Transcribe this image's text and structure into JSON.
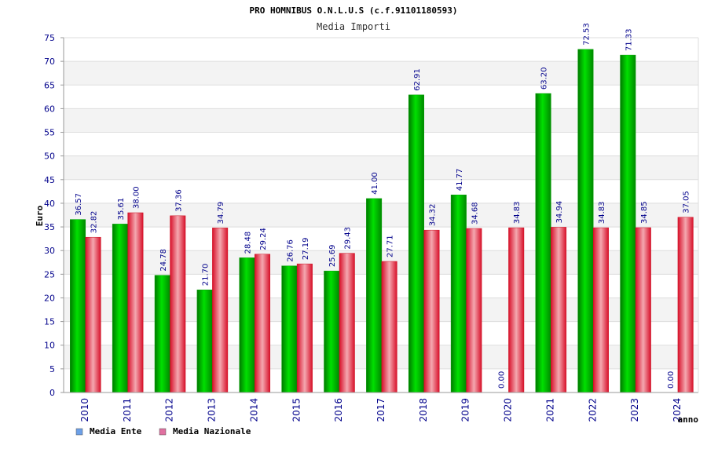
{
  "chart_data": {
    "type": "bar",
    "title": "PRO HOMNIBUS O.N.L.U.S (c.f.91101180593)",
    "subtitle": "Media Importi",
    "xlabel": "anno",
    "ylabel": "Euro",
    "categories": [
      "2010",
      "2011",
      "2012",
      "2013",
      "2014",
      "2015",
      "2016",
      "2017",
      "2018",
      "2019",
      "2020",
      "2021",
      "2022",
      "2023",
      "2024"
    ],
    "series": [
      {
        "name": "Media Ente",
        "color": "#00c000",
        "legend_color": "#6ca0e8",
        "values": [
          36.57,
          35.61,
          24.78,
          21.7,
          28.48,
          26.76,
          25.69,
          41.0,
          62.91,
          41.77,
          0.0,
          63.2,
          72.53,
          71.33,
          0.0
        ],
        "labels": [
          "36.57",
          "35.61",
          "24.78",
          "21.70",
          "28.48",
          "26.76",
          "25.69",
          "41.00",
          "62.91",
          "41.77",
          "0.00",
          "63.20",
          "72.53",
          "71.33",
          "0.00"
        ]
      },
      {
        "name": "Media Nazionale",
        "color": "#e8303c",
        "legend_color": "#e070a0",
        "values": [
          32.82,
          38.0,
          37.36,
          34.79,
          29.24,
          27.19,
          29.43,
          27.71,
          34.32,
          34.68,
          34.83,
          34.94,
          34.83,
          34.85,
          37.05
        ],
        "labels": [
          "32.82",
          "38.00",
          "37.36",
          "34.79",
          "29.24",
          "27.19",
          "29.43",
          "27.71",
          "34.32",
          "34.68",
          "34.83",
          "34.94",
          "34.83",
          "34.85",
          "37.05"
        ]
      }
    ],
    "ylim": [
      0,
      75
    ],
    "yticks": [
      0,
      5,
      10,
      15,
      20,
      25,
      30,
      35,
      40,
      45,
      50,
      55,
      60,
      65,
      70,
      75
    ],
    "ytick_labels": [
      "0",
      "5",
      "10",
      "15",
      "20",
      "25",
      "30",
      "35",
      "40",
      "45",
      "50",
      "55",
      "60",
      "65",
      "70",
      "75"
    ],
    "grid": true,
    "legend": "bottom-left"
  }
}
